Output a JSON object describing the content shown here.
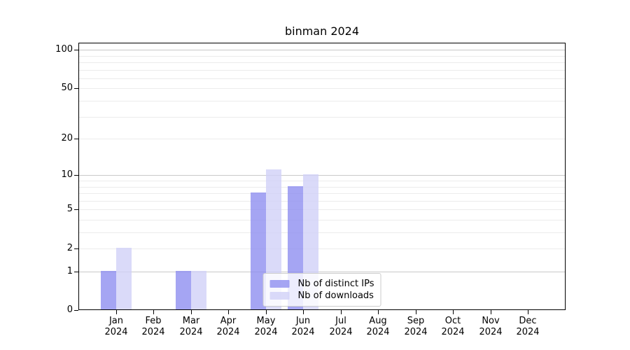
{
  "chart_data": {
    "type": "bar",
    "title": "binman 2024",
    "categories": [
      {
        "month": "Jan",
        "year": "2024"
      },
      {
        "month": "Feb",
        "year": "2024"
      },
      {
        "month": "Mar",
        "year": "2024"
      },
      {
        "month": "Apr",
        "year": "2024"
      },
      {
        "month": "May",
        "year": "2024"
      },
      {
        "month": "Jun",
        "year": "2024"
      },
      {
        "month": "Jul",
        "year": "2024"
      },
      {
        "month": "Aug",
        "year": "2024"
      },
      {
        "month": "Sep",
        "year": "2024"
      },
      {
        "month": "Oct",
        "year": "2024"
      },
      {
        "month": "Nov",
        "year": "2024"
      },
      {
        "month": "Dec",
        "year": "2024"
      }
    ],
    "series": [
      {
        "name": "Nb of distinct IPs",
        "color": "#8f8ff0cc",
        "values": [
          1,
          0,
          1,
          0,
          7,
          8,
          0,
          0,
          0,
          0,
          0,
          0
        ]
      },
      {
        "name": "Nb of downloads",
        "color": "#d1d1f7cc",
        "values": [
          2,
          0,
          1,
          0,
          11,
          10,
          0,
          0,
          0,
          0,
          0,
          0
        ]
      }
    ],
    "y_axis": {
      "scale": "log10(1+v)",
      "tick_labels": [
        0,
        1,
        2,
        5,
        10,
        20,
        50,
        100
      ],
      "major_gridlines": [
        1,
        10,
        100
      ],
      "minor_gridlines": [
        2,
        3,
        4,
        5,
        6,
        7,
        8,
        9,
        20,
        30,
        40,
        50,
        60,
        70,
        80,
        90
      ]
    },
    "legend_position": "lower center",
    "colors": {
      "major_grid": "#c9c9c9",
      "minor_grid": "#ececec",
      "axis": "#000000",
      "background": "#ffffff"
    }
  }
}
